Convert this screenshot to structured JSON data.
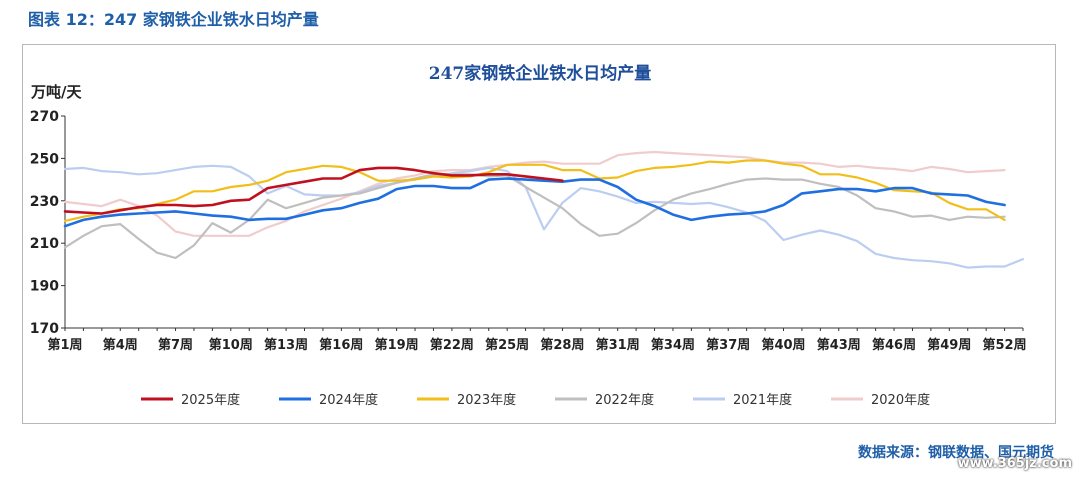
{
  "figure_title": "图表 12：247 家钢铁企业铁水日均产量",
  "source": "数据来源：钢联数据、国元期货",
  "watermark": "www.365jz.com",
  "chart_data": {
    "type": "line",
    "title": "247家钢铁企业铁水日均产量",
    "ylabel": "万吨/天",
    "xlabel": "",
    "ylim": [
      170,
      270
    ],
    "yticks": [
      170,
      190,
      210,
      230,
      250,
      270
    ],
    "x": [
      1,
      2,
      3,
      4,
      5,
      6,
      7,
      8,
      9,
      10,
      11,
      12,
      13,
      14,
      15,
      16,
      17,
      18,
      19,
      20,
      21,
      22,
      23,
      24,
      25,
      26,
      27,
      28,
      29,
      30,
      31,
      32,
      33,
      34,
      35,
      36,
      37,
      38,
      39,
      40,
      41,
      42,
      43,
      44,
      45,
      46,
      47,
      48,
      49,
      50,
      51,
      52,
      53
    ],
    "xticks": [
      "第1周",
      "第4周",
      "第7周",
      "第10周",
      "第13周",
      "第16周",
      "第19周",
      "第22周",
      "第25周",
      "第28周",
      "第31周",
      "第34周",
      "第37周",
      "第40周",
      "第43周",
      "第46周",
      "第49周",
      "第52周"
    ],
    "xtick_weeks": [
      1,
      4,
      7,
      10,
      13,
      16,
      19,
      22,
      25,
      28,
      31,
      34,
      37,
      40,
      43,
      46,
      49,
      52
    ],
    "legend_position": "bottom",
    "grid": false,
    "series": [
      {
        "name": "2020年度",
        "color": "#f0cccc",
        "values": [
          229.5,
          228.5,
          227.5,
          230.5,
          227.5,
          223.0,
          215.5,
          213.5,
          213.5,
          213.5,
          213.5,
          217.5,
          220.5,
          225.0,
          228.0,
          231.0,
          234.5,
          238.0,
          240.5,
          242.0,
          244.0,
          244.5,
          244.5,
          246.0,
          247.0,
          248.0,
          248.5,
          247.5,
          247.5,
          247.5,
          251.5,
          252.5,
          253.0,
          252.5,
          252.0,
          251.5,
          251.0,
          250.5,
          249.0,
          248.0,
          248.0,
          247.5,
          246.0,
          246.5,
          245.5,
          245.0,
          244.0,
          246.0,
          245.0,
          243.5,
          244.0,
          244.5,
          null
        ]
      },
      {
        "name": "2021年度",
        "color": "#bccef0",
        "values": [
          245.0,
          245.5,
          244.0,
          243.5,
          242.5,
          243.0,
          244.5,
          246.0,
          246.5,
          246.0,
          241.5,
          233.5,
          237.0,
          233.0,
          232.5,
          232.5,
          234.0,
          237.0,
          238.5,
          240.0,
          241.5,
          243.0,
          244.0,
          245.5,
          244.0,
          236.5,
          216.5,
          229.0,
          236.0,
          234.5,
          232.0,
          229.0,
          229.5,
          229.0,
          228.5,
          229.0,
          227.0,
          224.5,
          220.5,
          211.5,
          214.0,
          216.0,
          214.0,
          211.0,
          205.0,
          203.0,
          202.0,
          201.5,
          200.5,
          198.5,
          199.0,
          199.0,
          202.5
        ]
      },
      {
        "name": "2022年度",
        "color": "#bfbfbf",
        "values": [
          208.0,
          213.5,
          218.0,
          219.0,
          212.0,
          205.5,
          203.0,
          209.0,
          219.5,
          215.0,
          221.0,
          230.5,
          226.5,
          229.0,
          231.5,
          232.5,
          233.5,
          236.0,
          238.5,
          240.5,
          242.5,
          242.5,
          242.5,
          241.5,
          242.0,
          236.5,
          231.5,
          226.5,
          219.0,
          213.5,
          214.5,
          219.5,
          225.5,
          230.5,
          233.5,
          235.5,
          238.0,
          240.0,
          240.5,
          240.0,
          240.0,
          238.0,
          236.5,
          232.5,
          226.5,
          225.0,
          222.5,
          223.0,
          221.0,
          222.5,
          222.0,
          222.5,
          null
        ]
      },
      {
        "name": "2023年度",
        "color": "#f0bf1a",
        "values": [
          220.5,
          222.5,
          224.0,
          226.0,
          226.5,
          228.5,
          230.5,
          234.5,
          234.5,
          236.5,
          237.5,
          239.5,
          243.5,
          245.0,
          246.5,
          246.0,
          243.5,
          239.5,
          239.5,
          240.0,
          241.5,
          241.0,
          241.5,
          243.5,
          247.0,
          247.0,
          247.0,
          244.5,
          244.5,
          240.5,
          241.0,
          244.0,
          245.5,
          246.0,
          247.0,
          248.5,
          248.0,
          249.0,
          249.0,
          247.5,
          246.5,
          242.5,
          242.5,
          241.0,
          238.5,
          235.0,
          234.5,
          234.0,
          229.0,
          226.0,
          226.0,
          221.0,
          null
        ]
      },
      {
        "name": "2024年度",
        "color": "#1f6fe0",
        "values": [
          218.0,
          221.0,
          222.5,
          223.5,
          224.0,
          224.5,
          225.0,
          224.0,
          223.0,
          222.5,
          221.0,
          221.5,
          221.5,
          223.5,
          225.5,
          226.5,
          229.0,
          231.0,
          235.5,
          237.0,
          237.0,
          236.0,
          236.0,
          240.0,
          240.5,
          240.0,
          239.5,
          239.0,
          240.0,
          240.0,
          236.5,
          230.5,
          227.5,
          223.5,
          221.0,
          222.5,
          223.5,
          224.0,
          225.0,
          228.0,
          233.5,
          234.5,
          235.5,
          235.5,
          234.5,
          236.0,
          236.0,
          233.5,
          233.0,
          232.5,
          229.5,
          228.0,
          null
        ]
      },
      {
        "name": "2025年度",
        "color": "#c0101f",
        "values": [
          225.0,
          224.5,
          224.0,
          225.5,
          227.0,
          228.0,
          228.0,
          227.5,
          228.0,
          230.0,
          230.5,
          236.0,
          237.5,
          239.0,
          240.5,
          240.5,
          244.5,
          245.5,
          245.5,
          244.5,
          243.0,
          242.0,
          242.0,
          242.5,
          242.5,
          241.5,
          240.5,
          239.5,
          null,
          null,
          null,
          null,
          null,
          null,
          null,
          null,
          null,
          null,
          null,
          null,
          null,
          null,
          null,
          null,
          null,
          null,
          null,
          null,
          null,
          null,
          null,
          null,
          null
        ]
      }
    ],
    "legend_order": [
      "2025年度",
      "2024年度",
      "2023年度",
      "2022年度",
      "2021年度",
      "2020年度"
    ]
  }
}
